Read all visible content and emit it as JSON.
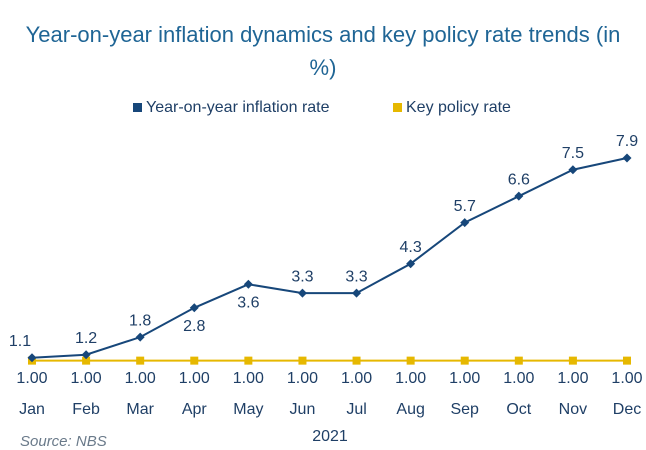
{
  "chart_data": {
    "type": "line",
    "title": "Year-on-year inflation dynamics and key policy rate trends (in %)",
    "categories": [
      "Jan",
      "Feb",
      "Mar",
      "Apr",
      "May",
      "Jun",
      "Jul",
      "Aug",
      "Sep",
      "Oct",
      "Nov",
      "Dec"
    ],
    "x_label": "2021",
    "series": [
      {
        "name": "Year-on-year inflation rate",
        "color": "#17477a",
        "values": [
          1.1,
          1.2,
          1.8,
          2.8,
          3.6,
          3.3,
          3.3,
          4.3,
          5.7,
          6.6,
          7.5,
          7.9
        ]
      },
      {
        "name": "Key policy rate",
        "color": "#e6b800",
        "values": [
          1,
          1,
          1,
          1,
          1,
          1,
          1,
          1,
          1,
          1,
          1,
          1
        ],
        "value_labels": [
          "1.00",
          "1.00",
          "1.00",
          "1.00",
          "1.00",
          "1.00",
          "1.00",
          "1.00",
          "1.00",
          "1.00",
          "1.00",
          "1.00"
        ]
      }
    ],
    "source": "Source: NBS"
  }
}
